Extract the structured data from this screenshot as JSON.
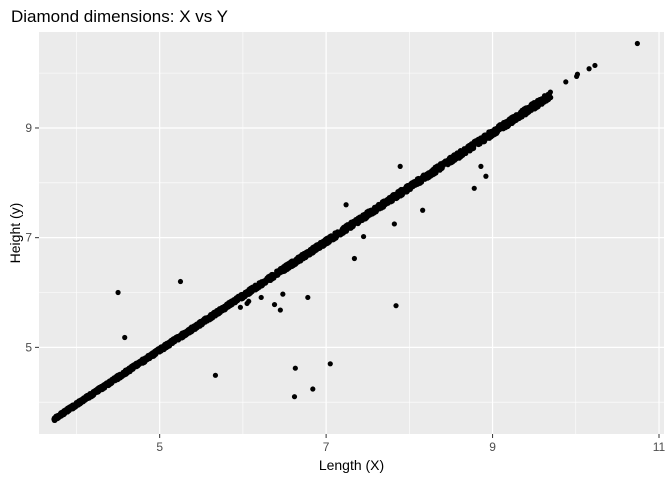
{
  "chart_data": {
    "type": "scatter",
    "title": "Diamond dimensions: X vs Y",
    "xlabel": "Length (X)",
    "ylabel": "Height (y)",
    "xlim": [
      3.55,
      11.06
    ],
    "ylim": [
      3.42,
      10.75
    ],
    "x_ticks": [
      5,
      7,
      9,
      11
    ],
    "y_ticks": [
      5,
      7,
      9
    ],
    "grid": true,
    "background": "#ebebeb",
    "point_color": "#000000",
    "main_trend": {
      "x_start": 3.73,
      "x_end": 9.7,
      "slope": 0.99,
      "intercept": 0.0
    },
    "points": [
      [
        4.5,
        6.0
      ],
      [
        5.25,
        6.2
      ],
      [
        4.58,
        5.18
      ],
      [
        5.67,
        4.49
      ],
      [
        5.97,
        5.73
      ],
      [
        6.07,
        5.84
      ],
      [
        6.22,
        5.91
      ],
      [
        6.38,
        5.78
      ],
      [
        6.45,
        5.68
      ],
      [
        6.48,
        5.97
      ],
      [
        6.78,
        5.91
      ],
      [
        7.45,
        7.02
      ],
      [
        7.82,
        7.25
      ],
      [
        7.34,
        6.62
      ],
      [
        7.84,
        5.76
      ],
      [
        6.63,
        4.62
      ],
      [
        7.05,
        4.7
      ],
      [
        6.62,
        4.1
      ],
      [
        6.84,
        4.24
      ],
      [
        8.16,
        7.5
      ],
      [
        8.78,
        7.9
      ],
      [
        8.92,
        8.12
      ],
      [
        8.86,
        8.3
      ],
      [
        7.89,
        8.3
      ],
      [
        7.24,
        7.6
      ],
      [
        9.62,
        9.5
      ],
      [
        9.88,
        9.84
      ],
      [
        10.02,
        9.98
      ],
      [
        10.01,
        9.94
      ],
      [
        10.16,
        10.08
      ],
      [
        10.23,
        10.14
      ],
      [
        10.74,
        10.54
      ],
      [
        6.05,
        5.8
      ],
      [
        8.6,
        8.45
      ]
    ]
  }
}
